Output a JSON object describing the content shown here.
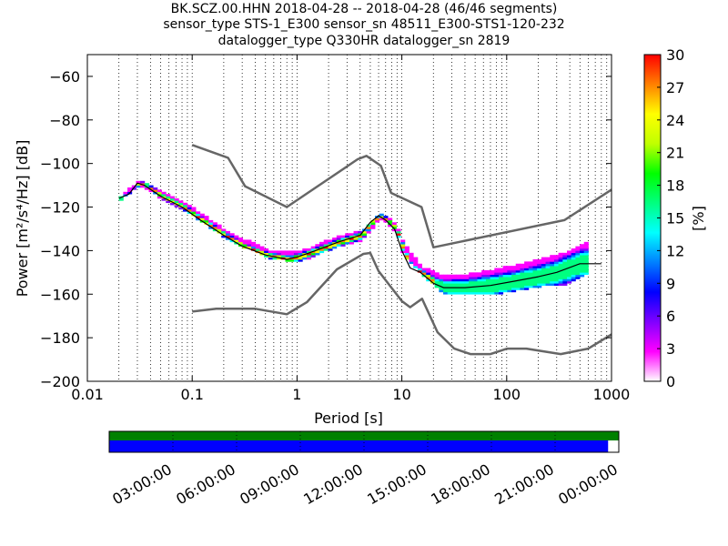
{
  "header": {
    "title_line1": "BK.SCZ.00.HHN   2018-04-28 -- 2018-04-28  (46/46 segments)",
    "title_line2": "sensor_type STS-1_E300 sensor_sn 48511_E300-STS1-120-232",
    "title_line3": "datalogger_type Q330HR datalogger_sn 2819"
  },
  "chart_data": [
    {
      "type": "heatmap",
      "xlabel": "Period [s]",
      "ylabel": "Power [m²/s⁴/Hz] [dB]",
      "x_scale": "log",
      "xlim": [
        0.01,
        1000
      ],
      "ylim": [
        -200,
        -50
      ],
      "x_ticks": [
        {
          "value": 0.01,
          "label": "0.01"
        },
        {
          "value": 0.1,
          "label": "0.1"
        },
        {
          "value": 1,
          "label": "1"
        },
        {
          "value": 10,
          "label": "10"
        },
        {
          "value": 100,
          "label": "100"
        },
        {
          "value": 1000,
          "label": "1000"
        }
      ],
      "y_ticks": [
        {
          "value": -60,
          "label": "−60"
        },
        {
          "value": -80,
          "label": "−80"
        },
        {
          "value": -100,
          "label": "−100"
        },
        {
          "value": -120,
          "label": "−120"
        },
        {
          "value": -140,
          "label": "−140"
        },
        {
          "value": -160,
          "label": "−160"
        },
        {
          "value": -180,
          "label": "−180"
        },
        {
          "value": -200,
          "label": "−200"
        }
      ],
      "grid": "dotted vertical at log subdivisions",
      "colorbar": {
        "label": "[%]",
        "range": [
          0,
          30
        ],
        "ticks": [
          {
            "value": 0,
            "label": "0"
          },
          {
            "value": 3,
            "label": "3"
          },
          {
            "value": 6,
            "label": "6"
          },
          {
            "value": 9,
            "label": "9"
          },
          {
            "value": 12,
            "label": "12"
          },
          {
            "value": 15,
            "label": "15"
          },
          {
            "value": 18,
            "label": "18"
          },
          {
            "value": 21,
            "label": "21"
          },
          {
            "value": 24,
            "label": "24"
          },
          {
            "value": 27,
            "label": "27"
          },
          {
            "value": 30,
            "label": "30"
          }
        ],
        "colors": [
          "#ffffff",
          "#ff00ff",
          "#8000ff",
          "#0000ff",
          "#0080ff",
          "#00ffff",
          "#00ff80",
          "#00ff00",
          "#c0ff00",
          "#ffff00",
          "#ff8000",
          "#ff0000"
        ]
      },
      "series": [
        {
          "role": "high_noise_model",
          "color": "#666666",
          "x": [
            0.1,
            0.22,
            0.32,
            0.8,
            3.8,
            4.6,
            6.3,
            7.9,
            15.4,
            20,
            354.8,
            1000
          ],
          "y": [
            -91.5,
            -97.4,
            -110.5,
            -120.0,
            -98.0,
            -96.5,
            -101.0,
            -113.5,
            -120.0,
            -138.5,
            -126.0,
            -112.0
          ]
        },
        {
          "role": "low_noise_model",
          "color": "#666666",
          "x": [
            0.1,
            0.17,
            0.4,
            0.8,
            1.24,
            2.4,
            4.3,
            5.0,
            6.0,
            10.0,
            12.0,
            15.6,
            21.9,
            31.6,
            45.0,
            70.0,
            101.0,
            154.0,
            328.0,
            600.0,
            1000.0
          ],
          "y": [
            -168.0,
            -166.7,
            -166.7,
            -169.2,
            -163.7,
            -148.6,
            -141.5,
            -141.1,
            -149.4,
            -163.2,
            -166.0,
            -162.1,
            -177.5,
            -185.0,
            -187.5,
            -187.5,
            -185.0,
            -185.0,
            -187.5,
            -185.0,
            -178.5
          ]
        },
        {
          "role": "mode",
          "color": "#000000",
          "x": [
            0.02,
            0.025,
            0.03,
            0.035,
            0.05,
            0.08,
            0.12,
            0.2,
            0.3,
            0.5,
            0.8,
            1.0,
            1.5,
            2.5,
            4.0,
            5.0,
            6.0,
            7.0,
            8.5,
            10.0,
            12.0,
            15.0,
            20.0,
            25.0,
            40.0,
            70.0,
            120.0,
            200.0,
            300.0,
            500.0,
            800.0
          ],
          "y": [
            -116.0,
            -114.0,
            -109.0,
            -110.0,
            -115.0,
            -120.0,
            -126.0,
            -133.0,
            -138.0,
            -142.0,
            -144.0,
            -143.0,
            -140.0,
            -136.0,
            -133.0,
            -127.0,
            -124.0,
            -126.0,
            -130.0,
            -140.0,
            -148.0,
            -150.0,
            -155.0,
            -157.0,
            -157.0,
            -156.0,
            -154.0,
            -152.0,
            -150.0,
            -146.0,
            -146.0
          ]
        }
      ],
      "spread": {
        "x": [
          0.02,
          0.03,
          0.05,
          0.1,
          0.2,
          0.5,
          1.0,
          2.0,
          4.0,
          6.0,
          8.5,
          10.0,
          15.0,
          25.0,
          40.0,
          70.0,
          120.0,
          200.0,
          350.0,
          600.0
        ],
        "low": [
          -116.5,
          -109.5,
          -116.0,
          -124.0,
          -134.0,
          -143.0,
          -145.0,
          -139.0,
          -135.0,
          -125.0,
          -131.0,
          -142.0,
          -151.0,
          -160.0,
          -160.0,
          -160.0,
          -158.0,
          -156.0,
          -155.0,
          -150.0
        ],
        "high": [
          -115.0,
          -108.0,
          -113.0,
          -121.0,
          -131.0,
          -140.0,
          -141.0,
          -135.0,
          -131.0,
          -123.0,
          -128.0,
          -137.0,
          -148.0,
          -152.0,
          -151.0,
          -149.0,
          -147.0,
          -144.0,
          -141.0,
          -135.0
        ]
      }
    },
    {
      "type": "bar",
      "role": "data_coverage",
      "start": "00:00:00",
      "end": "00:00:00",
      "tick_labels": [
        "03:00:00",
        "06:00:00",
        "09:00:00",
        "12:00:00",
        "15:00:00",
        "18:00:00",
        "21:00:00",
        "00:00:00"
      ],
      "series": [
        {
          "role": "processed_segments",
          "color": "#008000",
          "coverage": 1.0
        },
        {
          "role": "available_data",
          "color": "#0000ff",
          "coverage": 0.979
        }
      ]
    }
  ]
}
